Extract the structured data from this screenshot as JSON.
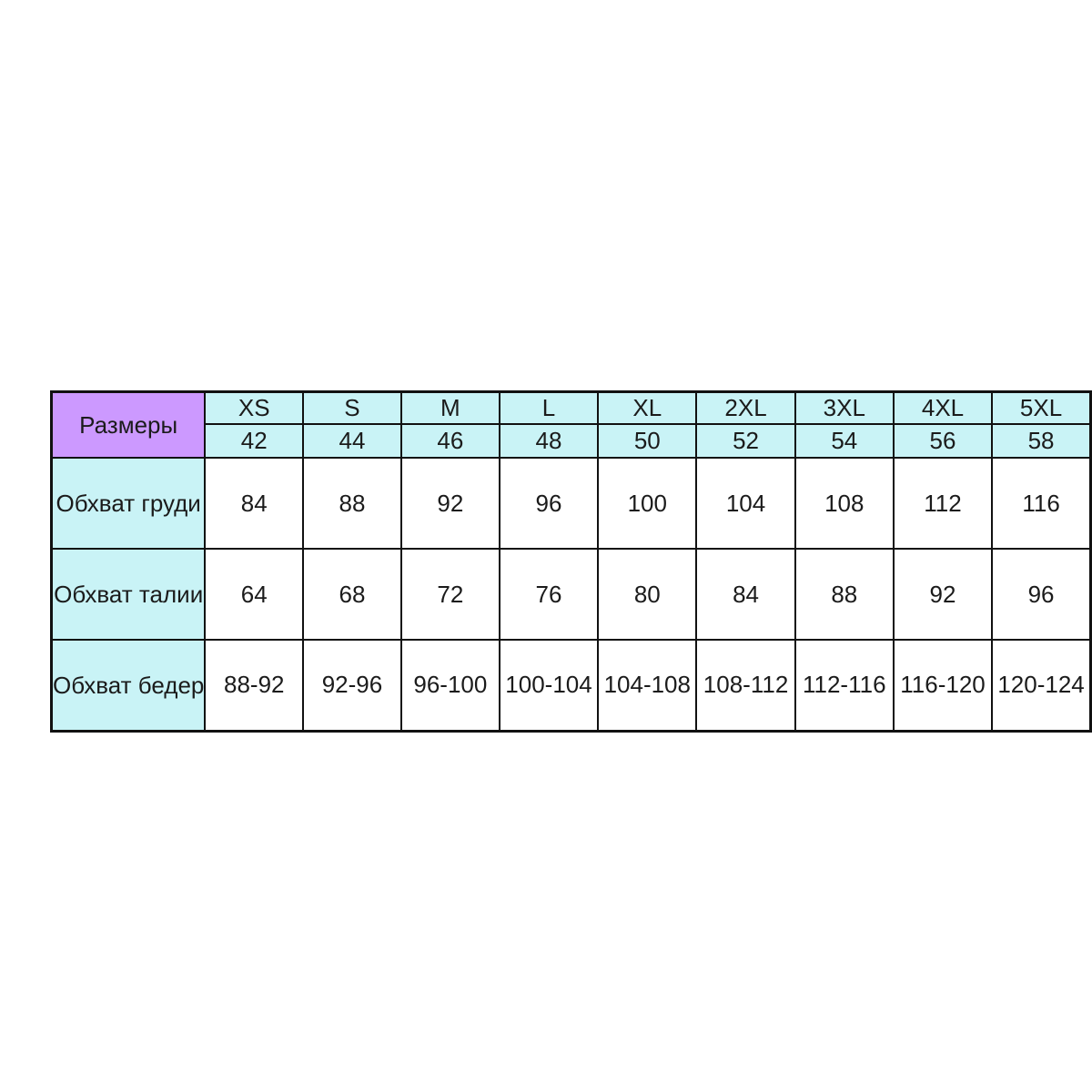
{
  "page": {
    "background": "#ffffff"
  },
  "colors": {
    "corner_fill": "#cc99ff",
    "header_fill": "#c9f3f6",
    "body_fill": "#ffffff",
    "border": "#111111",
    "text": "#1b1b1b"
  },
  "chart_data": {
    "type": "table",
    "corner_label": "Размеры",
    "size_labels": [
      "XS",
      "S",
      "M",
      "L",
      "XL",
      "2XL",
      "3XL",
      "4XL",
      "5XL"
    ],
    "russian_sizes": [
      "42",
      "44",
      "46",
      "48",
      "50",
      "52",
      "54",
      "56",
      "58"
    ],
    "rows": [
      {
        "label": "Обхват груди",
        "values": [
          "84",
          "88",
          "92",
          "96",
          "100",
          "104",
          "108",
          "112",
          "116"
        ]
      },
      {
        "label": "Обхват талии",
        "values": [
          "64",
          "68",
          "72",
          "76",
          "80",
          "84",
          "88",
          "92",
          "96"
        ]
      },
      {
        "label": "Обхват бедер",
        "values": [
          "88-92",
          "92-96",
          "96-100",
          "100-104",
          "104-108",
          "108-112",
          "112-116",
          "116-120",
          "120-124"
        ]
      }
    ]
  }
}
